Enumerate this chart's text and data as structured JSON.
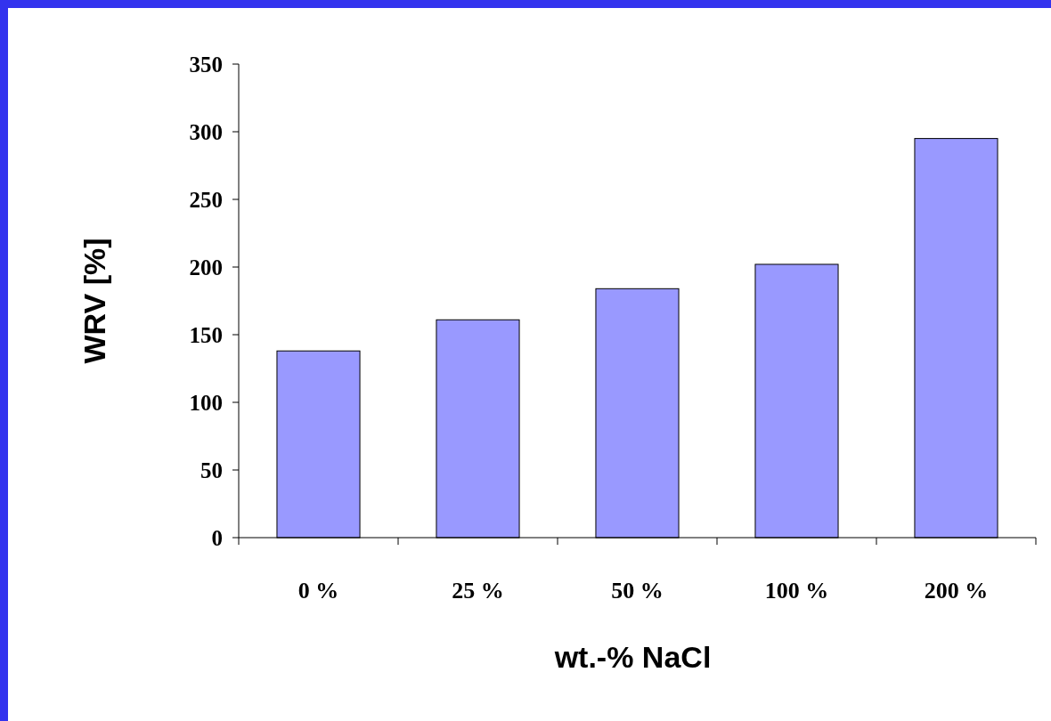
{
  "chart_data": {
    "type": "bar",
    "xlabel": "wt.-% NaCl",
    "ylabel": "WRV [%]",
    "categories": [
      "0 %",
      "25 %",
      "50 %",
      "100 %",
      "200 %"
    ],
    "values": [
      138,
      161,
      184,
      202,
      295
    ],
    "color": "#9999ff",
    "ylim": [
      0,
      350
    ],
    "yticks": [
      0,
      50,
      100,
      150,
      200,
      250,
      300,
      350
    ]
  }
}
